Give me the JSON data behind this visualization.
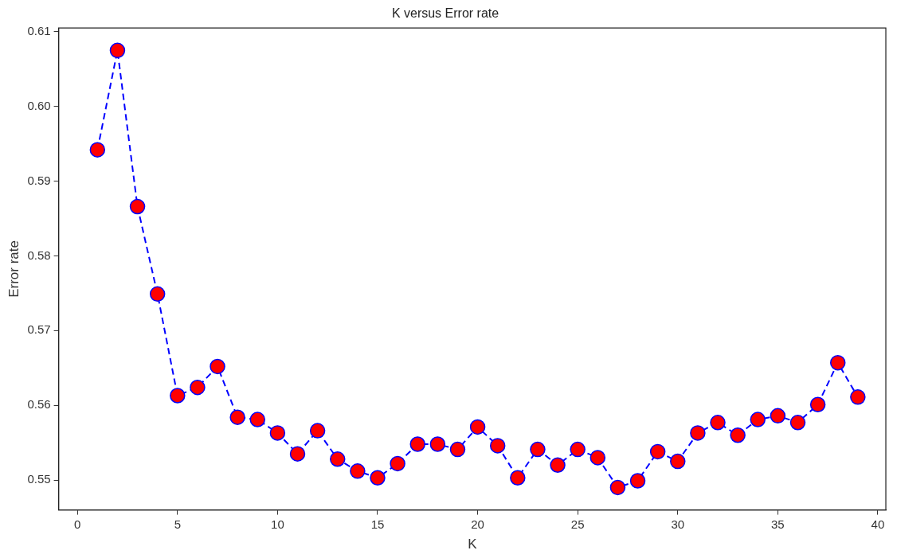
{
  "chart_data": {
    "type": "line",
    "title": "K versus Error rate",
    "xlabel": "K",
    "ylabel": "Error rate",
    "x": [
      1,
      2,
      3,
      4,
      5,
      6,
      7,
      8,
      9,
      10,
      11,
      12,
      13,
      14,
      15,
      16,
      17,
      18,
      19,
      20,
      21,
      22,
      23,
      24,
      25,
      26,
      27,
      28,
      29,
      30,
      31,
      32,
      33,
      34,
      35,
      36,
      37,
      38,
      39
    ],
    "series": [
      {
        "color": "#0000ff",
        "colors": [
          "#ff0000",
          "#ff0000",
          "#ff0000",
          "#ff0000",
          "#ff0000",
          "#ff0000",
          "#ff0000",
          "#ff0000",
          "#ff0000",
          "#ff0000",
          "#ff0000",
          "#ff0000",
          "#ff0000",
          "#ff0000",
          "#ff0000",
          "#ff0000",
          "#ff0000",
          "#ff0000",
          "#ff0000",
          "#ff0000",
          "#ff0000",
          "#ff0000",
          "#ff0000",
          "#ff0000",
          "#ff0000",
          "#ff0000",
          "#ff0000",
          "#ff0000",
          "#ff0000",
          "#ff0000",
          "#ff0000",
          "#ff0000",
          "#ff0000",
          "#ff0000",
          "#ff0000",
          "#ff0000",
          "#ff0000",
          "#ff0000",
          "#ff0000"
        ],
        "values": [
          0.5942,
          0.6075,
          0.5866,
          0.5749,
          0.5613,
          0.5624,
          0.5652,
          0.5584,
          0.5581,
          0.5563,
          0.5535,
          0.5566,
          0.5528,
          0.5512,
          0.5503,
          0.5522,
          0.5548,
          0.5548,
          0.5541,
          0.5571,
          0.5546,
          0.5503,
          0.5541,
          0.552,
          0.5541,
          0.553,
          0.549,
          0.5499,
          0.5538,
          0.5525,
          0.5563,
          0.5577,
          0.556,
          0.5581,
          0.5586,
          0.5577,
          0.5601,
          0.5657,
          0.5611
        ]
      }
    ],
    "xlim": [
      -0.94,
      40.4
    ],
    "ylim": [
      0.546,
      0.6105
    ],
    "xticks": [
      0,
      5,
      10,
      15,
      20,
      25,
      30,
      35,
      40
    ],
    "yticks": [
      {
        "value": 0.55,
        "label": "0.55"
      },
      {
        "value": 0.56,
        "label": "0.56"
      },
      {
        "value": 0.57,
        "label": "0.57"
      },
      {
        "value": 0.58,
        "label": "0.58"
      },
      {
        "value": 0.59,
        "label": "0.59"
      },
      {
        "value": 0.6,
        "label": "0.60"
      },
      {
        "value": 0.61,
        "label": "0.61"
      }
    ],
    "marker": "circle",
    "line_style": "dashed",
    "grid": false,
    "legend": false
  }
}
